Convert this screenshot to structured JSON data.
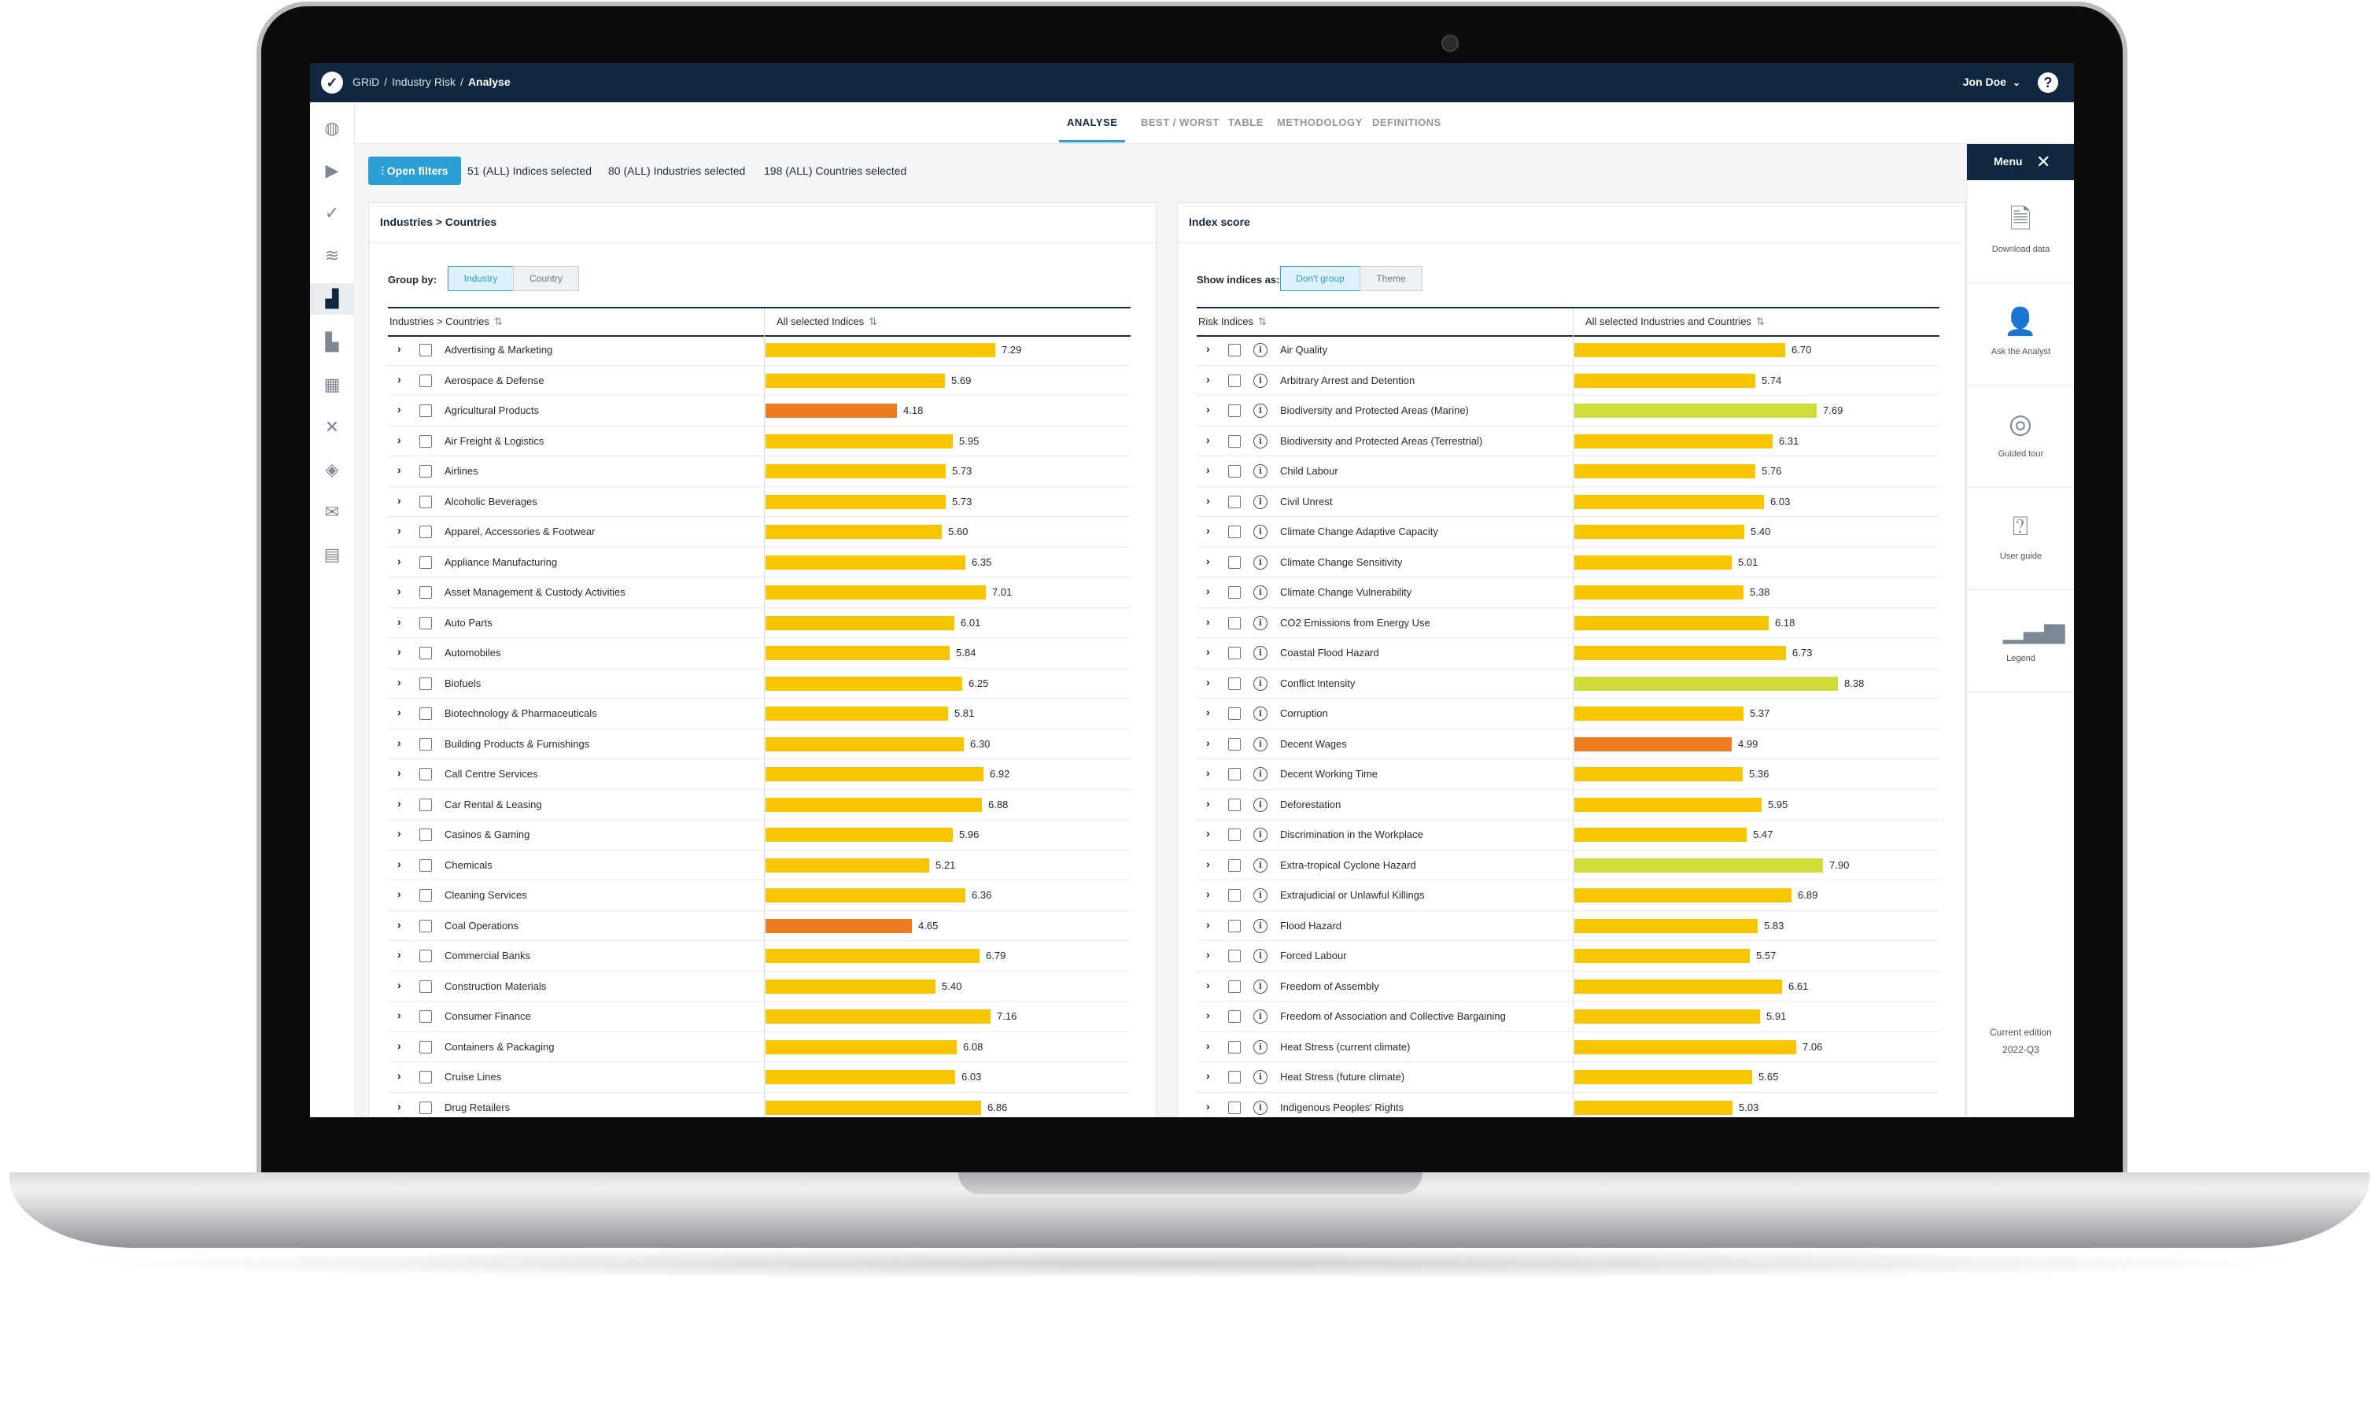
{
  "header": {
    "breadcrumbs": [
      "GRiD",
      "Industry Risk"
    ],
    "current": "Analyse",
    "user": "Jon Doe"
  },
  "tabs": [
    "ANALYSE",
    "BEST / WORST",
    "TABLE",
    "METHODOLOGY",
    "DEFINITIONS"
  ],
  "filters": {
    "button": "Open filters",
    "indices": "51 (ALL) Indices selected",
    "industries": "80 (ALL) Industries selected",
    "countries": "198 (ALL) Countries selected"
  },
  "left_panel": {
    "title": "Industries > Countries",
    "group_by_label": "Group by:",
    "group_options": [
      "Industry",
      "Country"
    ],
    "col1": "Industries > Countries",
    "col2": "All selected Indices",
    "rows": [
      {
        "label": "Advertising & Marketing",
        "value": "7.29"
      },
      {
        "label": "Aerospace & Defense",
        "value": "5.69"
      },
      {
        "label": "Agricultural Products",
        "value": "4.18"
      },
      {
        "label": "Air Freight & Logistics",
        "value": "5.95"
      },
      {
        "label": "Airlines",
        "value": "5.73"
      },
      {
        "label": "Alcoholic Beverages",
        "value": "5.73"
      },
      {
        "label": "Apparel, Accessories & Footwear",
        "value": "5.60"
      },
      {
        "label": "Appliance Manufacturing",
        "value": "6.35"
      },
      {
        "label": "Asset Management & Custody Activities",
        "value": "7.01"
      },
      {
        "label": "Auto Parts",
        "value": "6.01"
      },
      {
        "label": "Automobiles",
        "value": "5.84"
      },
      {
        "label": "Biofuels",
        "value": "6.25"
      },
      {
        "label": "Biotechnology & Pharmaceuticals",
        "value": "5.81"
      },
      {
        "label": "Building Products & Furnishings",
        "value": "6.30"
      },
      {
        "label": "Call Centre Services",
        "value": "6.92"
      },
      {
        "label": "Car Rental & Leasing",
        "value": "6.88"
      },
      {
        "label": "Casinos & Gaming",
        "value": "5.96"
      },
      {
        "label": "Chemicals",
        "value": "5.21"
      },
      {
        "label": "Cleaning Services",
        "value": "6.36"
      },
      {
        "label": "Coal Operations",
        "value": "4.65"
      },
      {
        "label": "Commercial Banks",
        "value": "6.79"
      },
      {
        "label": "Construction Materials",
        "value": "5.40"
      },
      {
        "label": "Consumer Finance",
        "value": "7.16"
      },
      {
        "label": "Containers & Packaging",
        "value": "6.08"
      },
      {
        "label": "Cruise Lines",
        "value": "6.03"
      },
      {
        "label": "Drug Retailers",
        "value": "6.86"
      }
    ]
  },
  "right_panel": {
    "title": "Index score",
    "show_label": "Show indices as:",
    "show_options": [
      "Don't group",
      "Theme"
    ],
    "col1": "Risk Indices",
    "col2": "All selected Industries and Countries",
    "rows": [
      {
        "label": "Air Quality",
        "value": "6.70"
      },
      {
        "label": "Arbitrary Arrest and Detention",
        "value": "5.74"
      },
      {
        "label": "Biodiversity and Protected Areas (Marine)",
        "value": "7.69"
      },
      {
        "label": "Biodiversity and Protected Areas (Terrestrial)",
        "value": "6.31"
      },
      {
        "label": "Child Labour",
        "value": "5.76"
      },
      {
        "label": "Civil Unrest",
        "value": "6.03"
      },
      {
        "label": "Climate Change Adaptive Capacity",
        "value": "5.40"
      },
      {
        "label": "Climate Change Sensitivity",
        "value": "5.01"
      },
      {
        "label": "Climate Change Vulnerability",
        "value": "5.38"
      },
      {
        "label": "CO2 Emissions from Energy Use",
        "value": "6.18"
      },
      {
        "label": "Coastal Flood Hazard",
        "value": "6.73"
      },
      {
        "label": "Conflict Intensity",
        "value": "8.38"
      },
      {
        "label": "Corruption",
        "value": "5.37"
      },
      {
        "label": "Decent Wages",
        "value": "4.99"
      },
      {
        "label": "Decent Working Time",
        "value": "5.36"
      },
      {
        "label": "Deforestation",
        "value": "5.95"
      },
      {
        "label": "Discrimination in the Workplace",
        "value": "5.47"
      },
      {
        "label": "Extra-tropical Cyclone Hazard",
        "value": "7.90"
      },
      {
        "label": "Extrajudicial or Unlawful Killings",
        "value": "6.89"
      },
      {
        "label": "Flood Hazard",
        "value": "5.83"
      },
      {
        "label": "Forced Labour",
        "value": "5.57"
      },
      {
        "label": "Freedom of Assembly",
        "value": "6.61"
      },
      {
        "label": "Freedom of Association and Collective Bargaining",
        "value": "5.91"
      },
      {
        "label": "Heat Stress (current climate)",
        "value": "7.06"
      },
      {
        "label": "Heat Stress (future climate)",
        "value": "5.65"
      },
      {
        "label": "Indigenous Peoples' Rights",
        "value": "5.03"
      }
    ]
  },
  "menu": {
    "title": "Menu",
    "items": [
      "Download data",
      "Ask the Analyst",
      "Guided tour",
      "User guide",
      "Legend"
    ],
    "edition_label": "Current edition",
    "edition": "2022-Q3"
  },
  "colors": {
    "navy": "#10283f",
    "accent": "#2b9fd6",
    "bar_medium": "#f7c600",
    "bar_high": "#f07a1e",
    "bar_low": "#cfdc3a"
  }
}
